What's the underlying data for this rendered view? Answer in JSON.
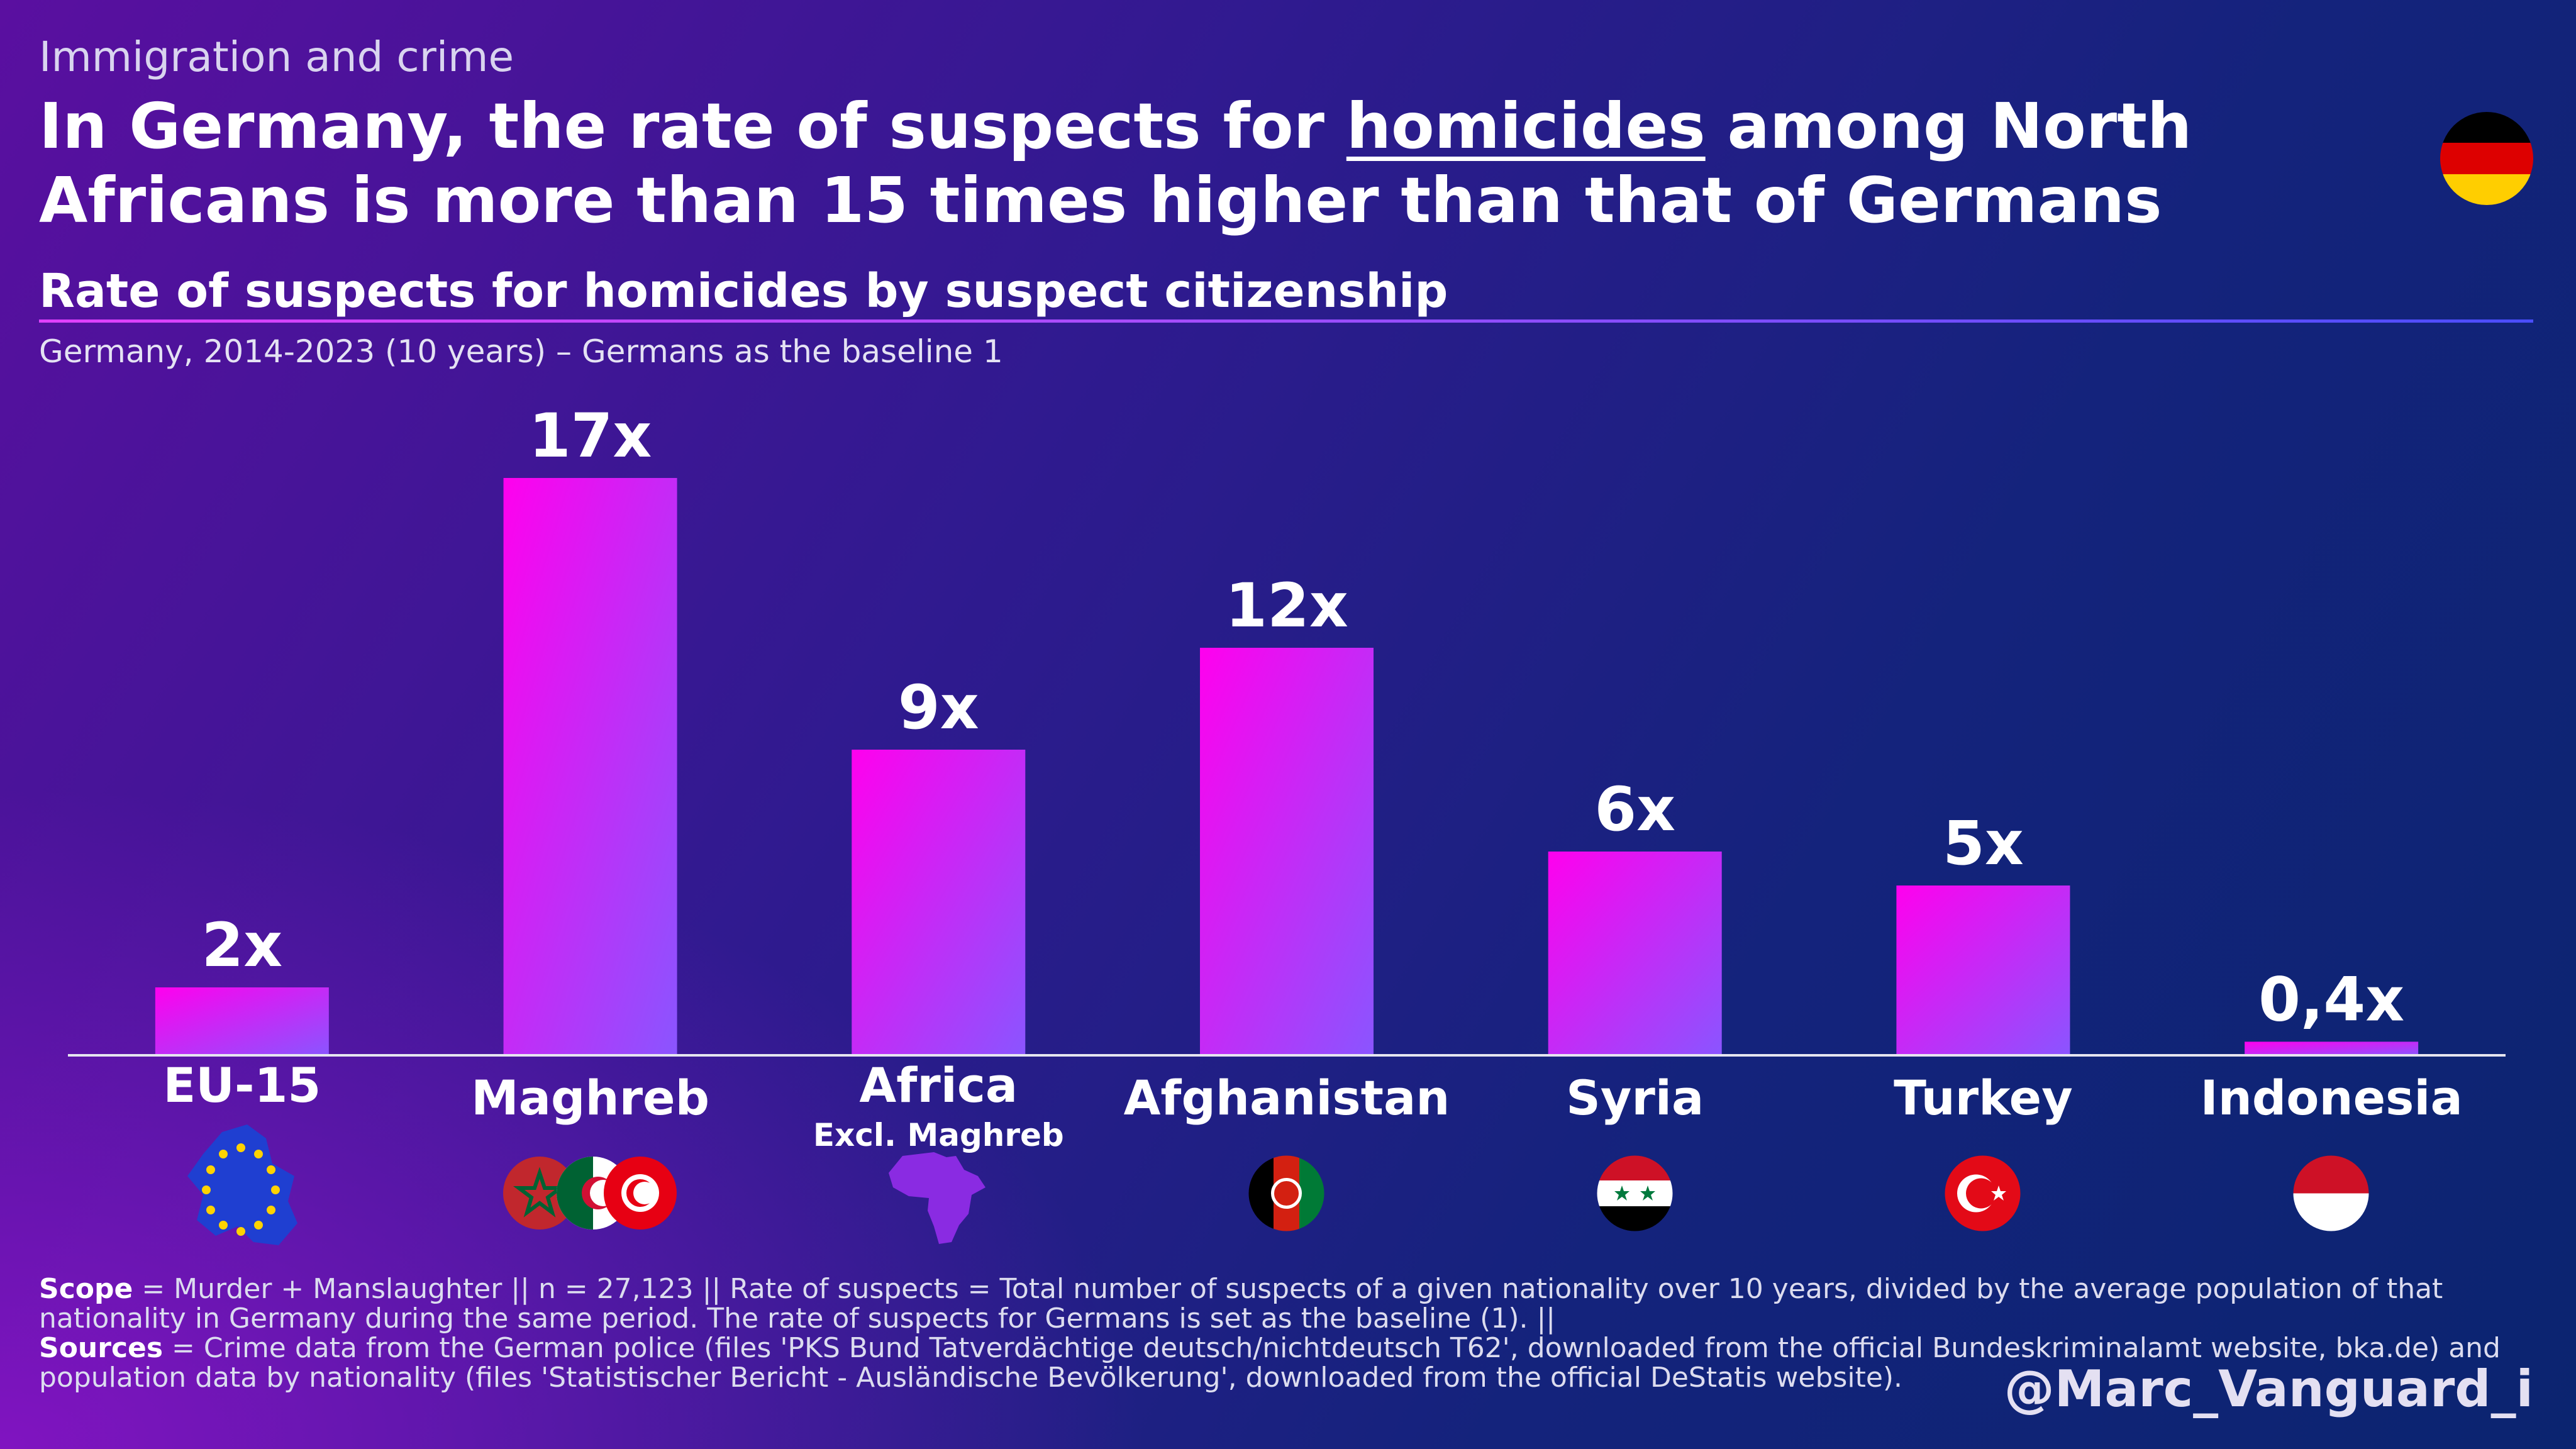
{
  "kicker": "Immigration and crime",
  "headline": {
    "part1": "In Germany, the rate of suspects for ",
    "emphasis": "homicides",
    "part2": " among North Africans is more than 15 times higher than that of Germans"
  },
  "chart_data": {
    "type": "bar",
    "title": "Rate of suspects for homicides by suspect citizenship",
    "subtitle": "Germany, 2014-2023 (10 years) – Germans as the baseline 1",
    "categories": [
      "EU-15",
      "Maghreb",
      "Africa",
      "Afghanistan",
      "Syria",
      "Turkey",
      "Indonesia"
    ],
    "category_sublabels": [
      "",
      "",
      "Excl. Maghreb",
      "",
      "",
      "",
      ""
    ],
    "values": [
      2,
      17,
      9,
      12,
      6,
      5,
      0.4
    ],
    "value_labels": [
      "2x",
      "17x",
      "9x",
      "12x",
      "6x",
      "5x",
      "0,4x"
    ],
    "ylim": [
      0,
      17
    ],
    "grid": false,
    "legend": "none"
  },
  "flags": [
    "eu-flag-icon",
    "maghreb-flags-icon",
    "africa-map-icon",
    "afghanistan-flag-icon",
    "syria-flag-icon",
    "turkey-flag-icon",
    "indonesia-flag-icon"
  ],
  "colors": {
    "bar_top": "#ff00ee",
    "bar_bottom": "#8a55ff",
    "accent": "#e040fb"
  },
  "footer": {
    "scope_label": "Scope",
    "scope_text": " = Murder + Manslaughter || n = 27,123 || Rate of suspects = Total number of suspects of a given nationality over 10 years, divided by the average population of that nationality in Germany during the same period. The rate of suspects for Germans is set as the baseline (1). ||",
    "sources_label": "Sources",
    "sources_text": " = Crime data from the German police (files 'PKS Bund Tatverdächtige deutsch/nichtdeutsch T62', downloaded from the official Bundeskriminalamt website, bka.de) and population data by nationality (files 'Statistischer Bericht - Ausländische Bevölkerung', downloaded from the official DeStatis website)."
  },
  "handle": "@Marc_Vanguard_i"
}
